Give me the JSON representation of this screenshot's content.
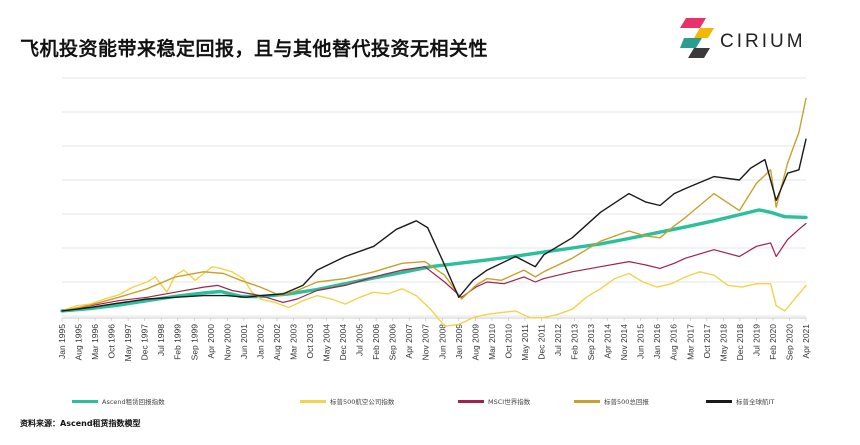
{
  "title": "飞机投资能带来稳定回报，且与其他替代投资无相关性",
  "logo": {
    "name": "cirium-logo",
    "text": "CIRIUM",
    "colors": [
      "#e8326b",
      "#f5b800",
      "#2a9d8f",
      "#3a3a3a"
    ]
  },
  "source": "资料来源：Ascend租赁指数模型",
  "chart_data": {
    "type": "line",
    "xlabel": "",
    "ylabel": "",
    "grid": true,
    "x_tick_labels": [
      "Jan 1995",
      "Aug 1995",
      "Mar 1996",
      "Oct 1996",
      "May 1997",
      "Dec 1997",
      "Jul 1998",
      "Feb 1999",
      "Sep 1999",
      "Apr 2000",
      "Nov 2000",
      "Jun 2001",
      "Jan 2002",
      "Aug 2002",
      "Mar 2003",
      "Oct 2003",
      "May 2004",
      "Dec 2004",
      "Jul 2005",
      "Feb 2006",
      "Sep 2006",
      "Apr 2007",
      "Nov 2007",
      "Jun 2008",
      "Jan 2009",
      "Aug 2009",
      "Mar 2010",
      "Oct 2010",
      "May 2011",
      "Dec 2011",
      "Jul 2012",
      "Feb 2013",
      "Sep 2013",
      "Apr 2014",
      "Nov 2014",
      "Jun 2015",
      "Jan 2016",
      "Aug 2016",
      "Mar 2017",
      "Oct 2017",
      "May 2018",
      "Dec 2018",
      "Jul 2019",
      "Feb 2020",
      "Sep 2020",
      "Apr 2021"
    ],
    "x_range": [
      1995.0,
      2021.25
    ],
    "ylim": [
      0,
      7
    ],
    "series": [
      {
        "name": "Ascend租赁回报指数",
        "color": "#2bbf9a",
        "width": 3.4,
        "points": [
          [
            1995.0,
            0.15
          ],
          [
            1996.0,
            0.22
          ],
          [
            1997.0,
            0.32
          ],
          [
            1998.0,
            0.45
          ],
          [
            1999.0,
            0.58
          ],
          [
            2000.0,
            0.68
          ],
          [
            2000.6,
            0.72
          ],
          [
            2001.3,
            0.58
          ],
          [
            2002.0,
            0.57
          ],
          [
            2003.0,
            0.65
          ],
          [
            2004.0,
            0.78
          ],
          [
            2005.0,
            0.95
          ],
          [
            2006.0,
            1.12
          ],
          [
            2007.0,
            1.28
          ],
          [
            2008.0,
            1.45
          ],
          [
            2009.0,
            1.55
          ],
          [
            2010.0,
            1.65
          ],
          [
            2011.0,
            1.76
          ],
          [
            2012.0,
            1.88
          ],
          [
            2013.0,
            2.0
          ],
          [
            2014.0,
            2.12
          ],
          [
            2015.0,
            2.28
          ],
          [
            2016.0,
            2.45
          ],
          [
            2017.0,
            2.62
          ],
          [
            2018.0,
            2.8
          ],
          [
            2019.0,
            3.0
          ],
          [
            2019.6,
            3.12
          ],
          [
            2020.0,
            3.05
          ],
          [
            2020.5,
            2.92
          ],
          [
            2021.25,
            2.9
          ]
        ]
      },
      {
        "name": "标普500航空公司指数",
        "color": "#f2d34a",
        "width": 1.4,
        "points": [
          [
            1995.0,
            0.15
          ],
          [
            1995.5,
            0.3
          ],
          [
            1996.0,
            0.35
          ],
          [
            1996.5,
            0.5
          ],
          [
            1997.0,
            0.62
          ],
          [
            1997.5,
            0.85
          ],
          [
            1998.0,
            1.0
          ],
          [
            1998.3,
            1.15
          ],
          [
            1998.7,
            0.7
          ],
          [
            1999.0,
            1.2
          ],
          [
            1999.3,
            1.35
          ],
          [
            1999.7,
            1.05
          ],
          [
            2000.0,
            1.25
          ],
          [
            2000.3,
            1.45
          ],
          [
            2000.6,
            1.4
          ],
          [
            2001.0,
            1.3
          ],
          [
            2001.4,
            1.1
          ],
          [
            2001.7,
            0.7
          ],
          [
            2002.0,
            0.5
          ],
          [
            2002.5,
            0.4
          ],
          [
            2003.0,
            0.25
          ],
          [
            2003.5,
            0.45
          ],
          [
            2004.0,
            0.6
          ],
          [
            2004.5,
            0.5
          ],
          [
            2005.0,
            0.35
          ],
          [
            2005.5,
            0.55
          ],
          [
            2006.0,
            0.7
          ],
          [
            2006.5,
            0.65
          ],
          [
            2007.0,
            0.8
          ],
          [
            2007.5,
            0.6
          ],
          [
            2008.0,
            0.2
          ],
          [
            2008.5,
            -0.3
          ],
          [
            2009.0,
            -0.25
          ],
          [
            2009.5,
            -0.05
          ],
          [
            2010.0,
            0.05
          ],
          [
            2010.5,
            0.1
          ],
          [
            2011.0,
            0.15
          ],
          [
            2011.5,
            -0.05
          ],
          [
            2012.0,
            -0.05
          ],
          [
            2012.5,
            0.05
          ],
          [
            2013.0,
            0.2
          ],
          [
            2013.5,
            0.55
          ],
          [
            2014.0,
            0.8
          ],
          [
            2014.5,
            1.1
          ],
          [
            2015.0,
            1.25
          ],
          [
            2015.5,
            1.0
          ],
          [
            2016.0,
            0.85
          ],
          [
            2016.5,
            0.95
          ],
          [
            2017.0,
            1.15
          ],
          [
            2017.5,
            1.3
          ],
          [
            2018.0,
            1.2
          ],
          [
            2018.5,
            0.9
          ],
          [
            2019.0,
            0.85
          ],
          [
            2019.5,
            0.95
          ],
          [
            2020.0,
            0.95
          ],
          [
            2020.2,
            0.3
          ],
          [
            2020.5,
            0.15
          ],
          [
            2020.8,
            0.45
          ],
          [
            2021.25,
            0.9
          ]
        ]
      },
      {
        "name": "MSCI世界指数",
        "color": "#a3204a",
        "width": 1.2,
        "points": [
          [
            1995.0,
            0.15
          ],
          [
            1996.0,
            0.3
          ],
          [
            1997.0,
            0.45
          ],
          [
            1998.0,
            0.55
          ],
          [
            1999.0,
            0.7
          ],
          [
            2000.0,
            0.85
          ],
          [
            2000.5,
            0.9
          ],
          [
            2001.0,
            0.75
          ],
          [
            2002.0,
            0.6
          ],
          [
            2002.8,
            0.4
          ],
          [
            2003.3,
            0.5
          ],
          [
            2004.0,
            0.75
          ],
          [
            2005.0,
            0.9
          ],
          [
            2006.0,
            1.15
          ],
          [
            2007.0,
            1.35
          ],
          [
            2007.8,
            1.45
          ],
          [
            2008.5,
            1.0
          ],
          [
            2009.1,
            0.55
          ],
          [
            2009.6,
            0.85
          ],
          [
            2010.0,
            1.0
          ],
          [
            2010.6,
            0.95
          ],
          [
            2011.3,
            1.15
          ],
          [
            2011.7,
            1.0
          ],
          [
            2012.0,
            1.1
          ],
          [
            2013.0,
            1.3
          ],
          [
            2014.0,
            1.45
          ],
          [
            2015.0,
            1.6
          ],
          [
            2015.6,
            1.5
          ],
          [
            2016.1,
            1.4
          ],
          [
            2016.6,
            1.55
          ],
          [
            2017.0,
            1.7
          ],
          [
            2018.0,
            1.95
          ],
          [
            2018.9,
            1.75
          ],
          [
            2019.5,
            2.05
          ],
          [
            2020.0,
            2.15
          ],
          [
            2020.2,
            1.75
          ],
          [
            2020.6,
            2.25
          ],
          [
            2021.0,
            2.55
          ],
          [
            2021.25,
            2.72
          ]
        ]
      },
      {
        "name": "标普500总回报",
        "color": "#c9a02e",
        "width": 1.4,
        "points": [
          [
            1995.0,
            0.15
          ],
          [
            1996.0,
            0.32
          ],
          [
            1997.0,
            0.55
          ],
          [
            1998.0,
            0.8
          ],
          [
            1999.0,
            1.15
          ],
          [
            2000.0,
            1.3
          ],
          [
            2000.7,
            1.25
          ],
          [
            2001.3,
            1.05
          ],
          [
            2002.0,
            0.85
          ],
          [
            2002.7,
            0.6
          ],
          [
            2003.3,
            0.75
          ],
          [
            2004.0,
            1.0
          ],
          [
            2005.0,
            1.1
          ],
          [
            2006.0,
            1.3
          ],
          [
            2007.0,
            1.55
          ],
          [
            2007.8,
            1.6
          ],
          [
            2008.5,
            1.2
          ],
          [
            2009.1,
            0.5
          ],
          [
            2009.6,
            0.9
          ],
          [
            2010.0,
            1.1
          ],
          [
            2010.5,
            1.05
          ],
          [
            2011.3,
            1.35
          ],
          [
            2011.7,
            1.15
          ],
          [
            2012.0,
            1.3
          ],
          [
            2013.0,
            1.7
          ],
          [
            2014.0,
            2.2
          ],
          [
            2015.0,
            2.5
          ],
          [
            2015.6,
            2.35
          ],
          [
            2016.1,
            2.3
          ],
          [
            2016.6,
            2.65
          ],
          [
            2017.0,
            2.9
          ],
          [
            2018.0,
            3.6
          ],
          [
            2018.9,
            3.1
          ],
          [
            2019.5,
            3.9
          ],
          [
            2020.0,
            4.3
          ],
          [
            2020.2,
            3.2
          ],
          [
            2020.6,
            4.5
          ],
          [
            2021.0,
            5.4
          ],
          [
            2021.25,
            6.4
          ]
        ]
      },
      {
        "name": "标普全球航IT",
        "color": "#1a1a1a",
        "width": 1.4,
        "points": [
          [
            1995.0,
            0.15
          ],
          [
            1996.0,
            0.25
          ],
          [
            1997.0,
            0.38
          ],
          [
            1998.0,
            0.5
          ],
          [
            1999.0,
            0.55
          ],
          [
            2000.0,
            0.6
          ],
          [
            2000.8,
            0.6
          ],
          [
            2001.5,
            0.55
          ],
          [
            2002.0,
            0.6
          ],
          [
            2002.8,
            0.65
          ],
          [
            2003.5,
            0.9
          ],
          [
            2004.0,
            1.35
          ],
          [
            2005.0,
            1.75
          ],
          [
            2006.0,
            2.05
          ],
          [
            2006.8,
            2.55
          ],
          [
            2007.5,
            2.8
          ],
          [
            2007.9,
            2.6
          ],
          [
            2008.5,
            1.5
          ],
          [
            2009.0,
            0.55
          ],
          [
            2009.5,
            1.05
          ],
          [
            2010.0,
            1.35
          ],
          [
            2011.0,
            1.75
          ],
          [
            2011.7,
            1.45
          ],
          [
            2012.0,
            1.8
          ],
          [
            2013.0,
            2.3
          ],
          [
            2014.0,
            3.05
          ],
          [
            2015.0,
            3.6
          ],
          [
            2015.6,
            3.35
          ],
          [
            2016.1,
            3.25
          ],
          [
            2016.6,
            3.6
          ],
          [
            2017.0,
            3.75
          ],
          [
            2018.0,
            4.1
          ],
          [
            2018.9,
            4.0
          ],
          [
            2019.3,
            4.35
          ],
          [
            2019.8,
            4.6
          ],
          [
            2020.2,
            3.4
          ],
          [
            2020.6,
            4.2
          ],
          [
            2021.0,
            4.3
          ],
          [
            2021.25,
            5.2
          ]
        ]
      }
    ]
  }
}
